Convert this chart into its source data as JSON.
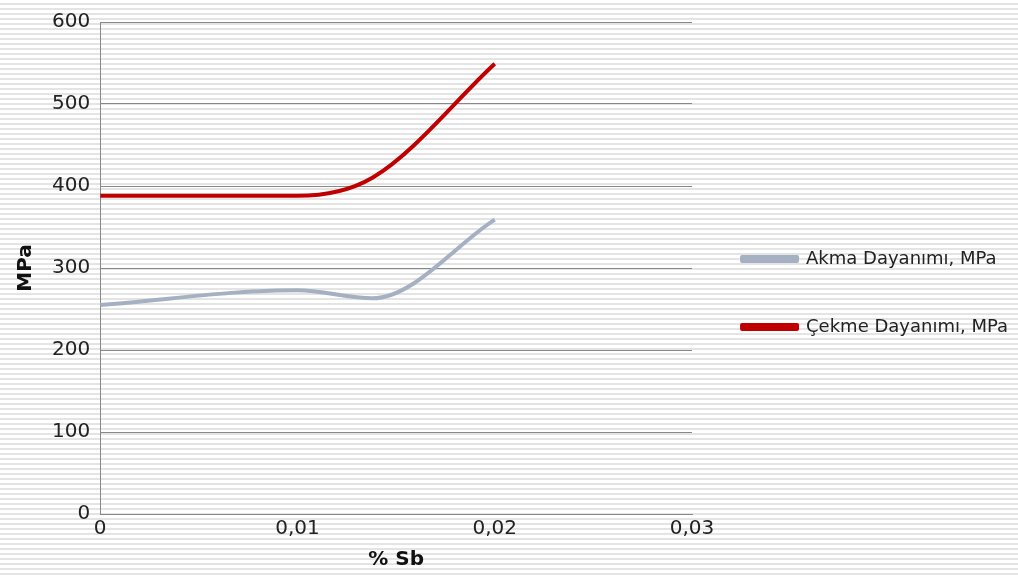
{
  "chart_data": {
    "type": "line",
    "xlabel": "% Sb",
    "ylabel": "MPa",
    "x": [
      0,
      0.01,
      0.0138,
      0.02
    ],
    "series": [
      {
        "name": "Akma Dayanımı, MPa",
        "color": "#a5b1c2",
        "values": [
          255,
          273,
          263,
          359
        ]
      },
      {
        "name": "Çekme Dayanımı, MPa",
        "color": "#c00000",
        "values": [
          388,
          388,
          410,
          549
        ]
      }
    ],
    "xlim": [
      0,
      0.03
    ],
    "xticks": [
      {
        "value": 0,
        "label": "0"
      },
      {
        "value": 0.01,
        "label": "0,01"
      },
      {
        "value": 0.02,
        "label": "0,02"
      },
      {
        "value": 0.03,
        "label": "0,03"
      }
    ],
    "ylim": [
      0,
      600
    ],
    "yticks": [
      0,
      100,
      200,
      300,
      400,
      500,
      600
    ],
    "grid": "y",
    "legend": "right",
    "marker": "none"
  }
}
